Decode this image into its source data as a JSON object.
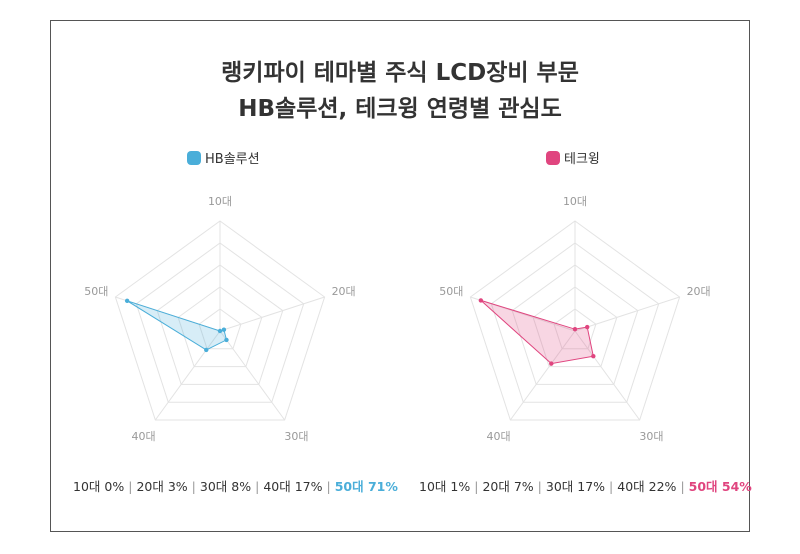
{
  "title": {
    "line1": "랭키파이 테마별 주식 LCD장비 부문",
    "line2": "HB솔루션, 테크윙 연령별 관심도"
  },
  "colors": {
    "left": "#4aaed9",
    "right": "#e0457f",
    "grid": "#e3e3e3",
    "axis_label": "#999999"
  },
  "chart_data": [
    {
      "type": "radar",
      "series_name": "HB솔루션",
      "categories": [
        "10대",
        "20대",
        "30대",
        "40대",
        "50대"
      ],
      "values": [
        0,
        3,
        8,
        17,
        71
      ],
      "rmax": 80,
      "grid_levels": 5,
      "summary": [
        {
          "label": "10대",
          "value": "0%"
        },
        {
          "label": "20대",
          "value": "3%"
        },
        {
          "label": "30대",
          "value": "8%"
        },
        {
          "label": "40대",
          "value": "17%"
        },
        {
          "label": "50대",
          "value": "71%"
        }
      ],
      "highlight_index": 4
    },
    {
      "type": "radar",
      "series_name": "테크윙",
      "categories": [
        "10대",
        "20대",
        "30대",
        "40대",
        "50대"
      ],
      "values": [
        1,
        7,
        17,
        22,
        54
      ],
      "rmax": 60,
      "grid_levels": 5,
      "summary": [
        {
          "label": "10대",
          "value": "1%"
        },
        {
          "label": "20대",
          "value": "7%"
        },
        {
          "label": "30대",
          "value": "17%"
        },
        {
          "label": "40대",
          "value": "22%"
        },
        {
          "label": "50대",
          "value": "54%"
        }
      ],
      "highlight_index": 4
    }
  ]
}
